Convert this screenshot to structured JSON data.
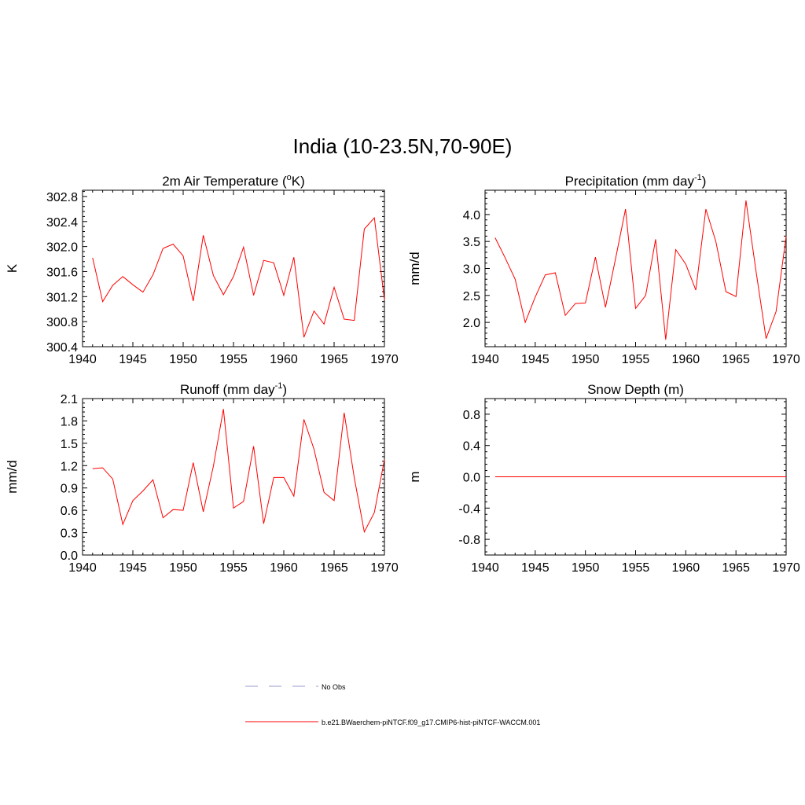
{
  "title": "India (10-23.5N,70-90E)",
  "colors": {
    "model": "#ff0000",
    "obs": "#9999cc",
    "frame": "#000000"
  },
  "legend": {
    "obs_label": "No Obs",
    "model_label": "b.e21.BWaerchem-piNTCF.f09_g17.CMIP6-hist-piNTCF-WACCM.001"
  },
  "chart_data": [
    {
      "type": "line",
      "title": "2m Air Temperature (",
      "title_sup": "o",
      "title_tail": "K)",
      "ylabel": "K",
      "xlabel": "",
      "xlim": [
        1940,
        1970
      ],
      "ylim": [
        300.4,
        302.9
      ],
      "xticks": [
        1940,
        1945,
        1950,
        1955,
        1960,
        1965,
        1970
      ],
      "xtick_labels": [
        "1940",
        "1945",
        "1950",
        "1955",
        "1960",
        "1965",
        "1970"
      ],
      "yticks": [
        300.4,
        300.8,
        301.2,
        301.6,
        302.0,
        302.4,
        302.8
      ],
      "ytick_labels": [
        "300.4",
        "300.8",
        "301.2",
        "301.6",
        "302.0",
        "302.4",
        "302.8"
      ],
      "grid": false,
      "series": [
        {
          "x": [
            1941,
            1942,
            1943,
            1944,
            1945,
            1946,
            1947,
            1948,
            1949,
            1950,
            1951,
            1952,
            1953,
            1954,
            1955,
            1956,
            1957,
            1958,
            1959,
            1960,
            1961,
            1962,
            1963,
            1964,
            1965,
            1966,
            1967,
            1968,
            1969,
            1970
          ],
          "y": [
            301.82,
            301.12,
            301.38,
            301.52,
            301.39,
            301.27,
            301.55,
            301.97,
            302.04,
            301.85,
            301.13,
            302.18,
            301.54,
            301.23,
            301.52,
            301.99,
            301.22,
            301.78,
            301.74,
            301.22,
            301.83,
            300.55,
            300.97,
            300.76,
            301.35,
            300.84,
            300.82,
            302.28,
            302.46,
            301.15
          ]
        }
      ]
    },
    {
      "type": "line",
      "title": "Precipitation (mm day",
      "title_sup": "-1",
      "title_tail": ")",
      "ylabel": "mm/d",
      "xlabel": "",
      "xlim": [
        1940,
        1970
      ],
      "ylim": [
        1.55,
        4.45
      ],
      "xticks": [
        1940,
        1945,
        1950,
        1955,
        1960,
        1965,
        1970
      ],
      "xtick_labels": [
        "1940",
        "1945",
        "1950",
        "1955",
        "1960",
        "1965",
        "1970"
      ],
      "yticks": [
        2.0,
        2.5,
        3.0,
        3.5,
        4.0
      ],
      "ytick_labels": [
        "2.0",
        "2.5",
        "3.0",
        "3.5",
        "4.0"
      ],
      "grid": false,
      "series": [
        {
          "x": [
            1941,
            1942,
            1943,
            1944,
            1945,
            1946,
            1947,
            1948,
            1949,
            1950,
            1951,
            1952,
            1953,
            1954,
            1955,
            1956,
            1957,
            1958,
            1959,
            1960,
            1961,
            1962,
            1963,
            1964,
            1965,
            1966,
            1967,
            1968,
            1969,
            1970
          ],
          "y": [
            3.57,
            3.2,
            2.8,
            2.0,
            2.47,
            2.88,
            2.92,
            2.13,
            2.35,
            2.36,
            3.21,
            2.28,
            3.18,
            4.1,
            2.26,
            2.5,
            3.54,
            1.68,
            3.35,
            3.08,
            2.6,
            4.1,
            3.5,
            2.57,
            2.48,
            4.26,
            2.95,
            1.7,
            2.2,
            3.6
          ]
        }
      ]
    },
    {
      "type": "line",
      "title": "Runoff (mm day",
      "title_sup": "-1",
      "title_tail": ")",
      "ylabel": "mm/d",
      "xlabel": "",
      "xlim": [
        1940,
        1970
      ],
      "ylim": [
        0.0,
        2.1
      ],
      "xticks": [
        1940,
        1945,
        1950,
        1955,
        1960,
        1965,
        1970
      ],
      "xtick_labels": [
        "1940",
        "1945",
        "1950",
        "1955",
        "1960",
        "1965",
        "1970"
      ],
      "yticks": [
        0.0,
        0.3,
        0.6,
        0.9,
        1.2,
        1.5,
        1.8,
        2.1
      ],
      "ytick_labels": [
        "0.0",
        "0.3",
        "0.6",
        "0.9",
        "1.2",
        "1.5",
        "1.8",
        "2.1"
      ],
      "grid": false,
      "series": [
        {
          "x": [
            1941,
            1942,
            1943,
            1944,
            1945,
            1946,
            1947,
            1948,
            1949,
            1950,
            1951,
            1952,
            1953,
            1954,
            1955,
            1956,
            1957,
            1958,
            1959,
            1960,
            1961,
            1962,
            1963,
            1964,
            1965,
            1966,
            1967,
            1968,
            1969,
            1970
          ],
          "y": [
            1.16,
            1.17,
            1.02,
            0.41,
            0.73,
            0.86,
            1.01,
            0.5,
            0.61,
            0.6,
            1.24,
            0.58,
            1.19,
            1.96,
            0.63,
            0.72,
            1.46,
            0.42,
            1.04,
            1.04,
            0.79,
            1.82,
            1.42,
            0.84,
            0.73,
            1.91,
            1.04,
            0.31,
            0.57,
            1.28
          ]
        }
      ]
    },
    {
      "type": "line",
      "title": "Snow Depth (m)",
      "title_sup": "",
      "title_tail": "",
      "ylabel": "m",
      "xlabel": "",
      "xlim": [
        1940,
        1970
      ],
      "ylim": [
        -1.0,
        1.0
      ],
      "xticks": [
        1940,
        1945,
        1950,
        1955,
        1960,
        1965,
        1970
      ],
      "xtick_labels": [
        "1940",
        "1945",
        "1950",
        "1955",
        "1960",
        "1965",
        "1970"
      ],
      "yticks": [
        -0.8,
        -0.4,
        0.0,
        0.4,
        0.8
      ],
      "ytick_labels": [
        "-0.8",
        "-0.4",
        "0.0",
        "0.4",
        "0.8"
      ],
      "grid": false,
      "series": [
        {
          "x": [
            1941,
            1942,
            1943,
            1944,
            1945,
            1946,
            1947,
            1948,
            1949,
            1950,
            1951,
            1952,
            1953,
            1954,
            1955,
            1956,
            1957,
            1958,
            1959,
            1960,
            1961,
            1962,
            1963,
            1964,
            1965,
            1966,
            1967,
            1968,
            1969,
            1970
          ],
          "y": [
            0,
            0,
            0,
            0,
            0,
            0,
            0,
            0,
            0,
            0,
            0,
            0,
            0,
            0,
            0,
            0,
            0,
            0,
            0,
            0,
            0,
            0,
            0,
            0,
            0,
            0,
            0,
            0,
            0,
            0
          ]
        }
      ]
    }
  ]
}
